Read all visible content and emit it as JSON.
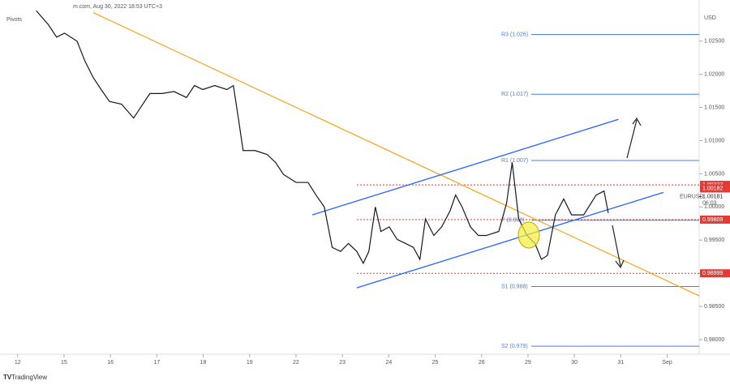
{
  "header": {
    "source": "m.com, Aug 30, 2022 18:53 UTC+3",
    "indicator": "Pivots",
    "currency": "USD",
    "brand": "TradingView"
  },
  "chart_data": {
    "type": "line",
    "x": [
      0.4,
      0.66,
      0.84,
      1.01,
      1.28,
      1.45,
      1.63,
      1.8,
      1.98,
      2.24,
      2.5,
      2.67,
      2.85,
      3.11,
      3.37,
      3.64,
      3.81,
      3.99,
      4.25,
      4.51,
      4.65,
      4.77,
      4.86,
      5.12,
      5.38,
      5.56,
      5.73,
      6.0,
      6.26,
      6.43,
      6.61,
      6.78,
      6.96,
      7.13,
      7.31,
      7.45,
      7.57,
      7.71,
      7.83,
      8.01,
      8.18,
      8.36,
      8.53,
      8.67,
      8.79,
      8.97,
      9.14,
      9.32,
      9.44,
      9.58,
      9.76,
      9.93,
      10.1,
      10.37,
      10.54,
      10.66,
      10.8,
      10.98,
      11.15,
      11.29,
      11.42,
      11.59,
      11.77,
      11.94,
      12.2,
      12.47,
      12.64,
      12.73
    ],
    "series": [
      {
        "name": "EURUSD",
        "color": "#131722",
        "values": [
          1.0296,
          1.0275,
          1.0256,
          1.0262,
          1.025,
          1.022,
          1.0195,
          1.0177,
          1.0159,
          1.0155,
          1.0134,
          1.0152,
          1.0171,
          1.0171,
          1.0174,
          1.0165,
          1.0183,
          1.0177,
          1.0183,
          1.0177,
          1.0183,
          1.0128,
          1.0085,
          1.0085,
          1.0079,
          1.0067,
          1.0049,
          1.0037,
          1.0037,
          1.0018,
          1.0,
          0.9939,
          0.9933,
          0.9945,
          0.9933,
          0.9915,
          0.9933,
          1.0,
          0.9963,
          0.997,
          0.9951,
          0.9945,
          0.9939,
          0.9921,
          0.9982,
          0.9957,
          0.997,
          0.9994,
          1.0018,
          1.0,
          0.997,
          0.9957,
          0.9957,
          0.9963,
          1.0006,
          1.0067,
          0.9982,
          0.9957,
          0.9945,
          0.9921,
          0.9927,
          0.9988,
          1.0012,
          0.9988,
          0.9988,
          1.0018,
          1.0024,
          0.9991
        ]
      }
    ],
    "xlim": [
      -0.38,
      14.69
    ],
    "ylim": [
      0.9778,
      1.0312
    ],
    "xticks": [
      {
        "value": 0,
        "label": "12"
      },
      {
        "value": 1,
        "label": "15"
      },
      {
        "value": 2,
        "label": "16"
      },
      {
        "value": 3,
        "label": "17"
      },
      {
        "value": 4,
        "label": "18"
      },
      {
        "value": 5,
        "label": "19"
      },
      {
        "value": 6,
        "label": "22"
      },
      {
        "value": 7,
        "label": "23"
      },
      {
        "value": 8,
        "label": "24"
      },
      {
        "value": 9,
        "label": "25"
      },
      {
        "value": 10,
        "label": "26"
      },
      {
        "value": 11,
        "label": "29"
      },
      {
        "value": 12,
        "label": "30"
      },
      {
        "value": 13,
        "label": "31"
      },
      {
        "value": 14,
        "label": "Sep"
      }
    ],
    "yticks": [
      {
        "value": 1.025,
        "label": "1.02500"
      },
      {
        "value": 1.02,
        "label": "1.02000"
      },
      {
        "value": 1.015,
        "label": "1.01500"
      },
      {
        "value": 1.01,
        "label": "1.01000"
      },
      {
        "value": 1.005,
        "label": "1.00500"
      },
      {
        "value": 1.0,
        "label": "1.00000"
      },
      {
        "value": 0.995,
        "label": "0.99500"
      },
      {
        "value": 0.99,
        "label": "0.99000"
      },
      {
        "value": 0.985,
        "label": "0.98500"
      },
      {
        "value": 0.98,
        "label": "0.98000"
      }
    ],
    "pivot_color": "#4a7fe0",
    "pivots": [
      {
        "label": "R3 (1.026)",
        "value": 1.026
      },
      {
        "label": "R2 (1.017)",
        "value": 1.017
      },
      {
        "label": "R1 (1.007)",
        "value": 1.007
      },
      {
        "label": "P (0.998)",
        "value": 0.998
      },
      {
        "label": "S1 (0.988)",
        "value": 0.988
      },
      {
        "label": "S2 (0.979)",
        "value": 0.979
      }
    ],
    "level_color": "#e53935",
    "levels": [
      {
        "label": "1.00333",
        "value": 1.00333
      },
      {
        "label": "0.99809",
        "value": 0.99809
      },
      {
        "label": "0.98999",
        "value": 0.98999
      }
    ],
    "last": {
      "label": "1.00182",
      "value": 1.00182
    },
    "price": {
      "label": "1.00181",
      "value": 1.00181,
      "countdown": "06:03"
    },
    "trendlines": [
      {
        "color": "#f0a830",
        "x": [
          1.63,
          14.69
        ],
        "values": [
          1.0293,
          0.9866
        ]
      },
      {
        "color": "#2962ff",
        "x": [
          6.35,
          12.95
        ],
        "values": [
          0.9988,
          1.0132
        ]
      },
      {
        "color": "#2962ff",
        "x": [
          7.31,
          13.92
        ],
        "values": [
          0.9878,
          1.0022
        ]
      }
    ]
  }
}
